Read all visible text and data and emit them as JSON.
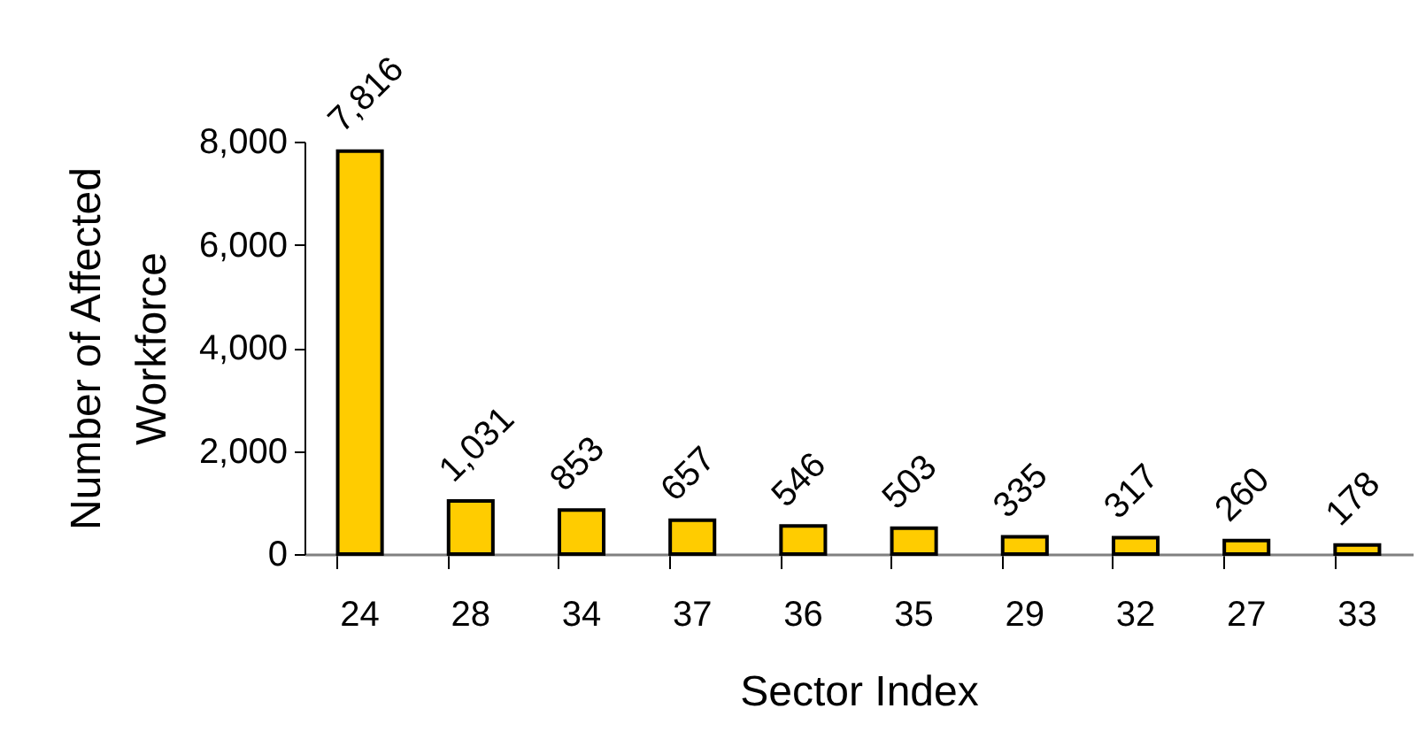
{
  "chart_data": {
    "type": "bar",
    "xlabel": "Sector Index",
    "ylabel": "Number of Affected Workforce",
    "categories": [
      "24",
      "28",
      "34",
      "37",
      "36",
      "35",
      "29",
      "32",
      "27",
      "33"
    ],
    "values": [
      7816,
      1031,
      853,
      657,
      546,
      503,
      335,
      317,
      260,
      178
    ],
    "color": "#ffcc00",
    "ylim": [
      0,
      8000
    ],
    "yticks": [
      {
        "value": 0,
        "label": "0"
      },
      {
        "value": 2000,
        "label": "2,000"
      },
      {
        "value": 4000,
        "label": "4,000"
      },
      {
        "value": 6000,
        "label": "6,000"
      },
      {
        "value": 8000,
        "label": "8,000"
      }
    ],
    "value_labels": [
      "7,816",
      "1,031",
      "853",
      "657",
      "546",
      "503",
      "335",
      "317",
      "260",
      "178"
    ],
    "grid": false
  }
}
